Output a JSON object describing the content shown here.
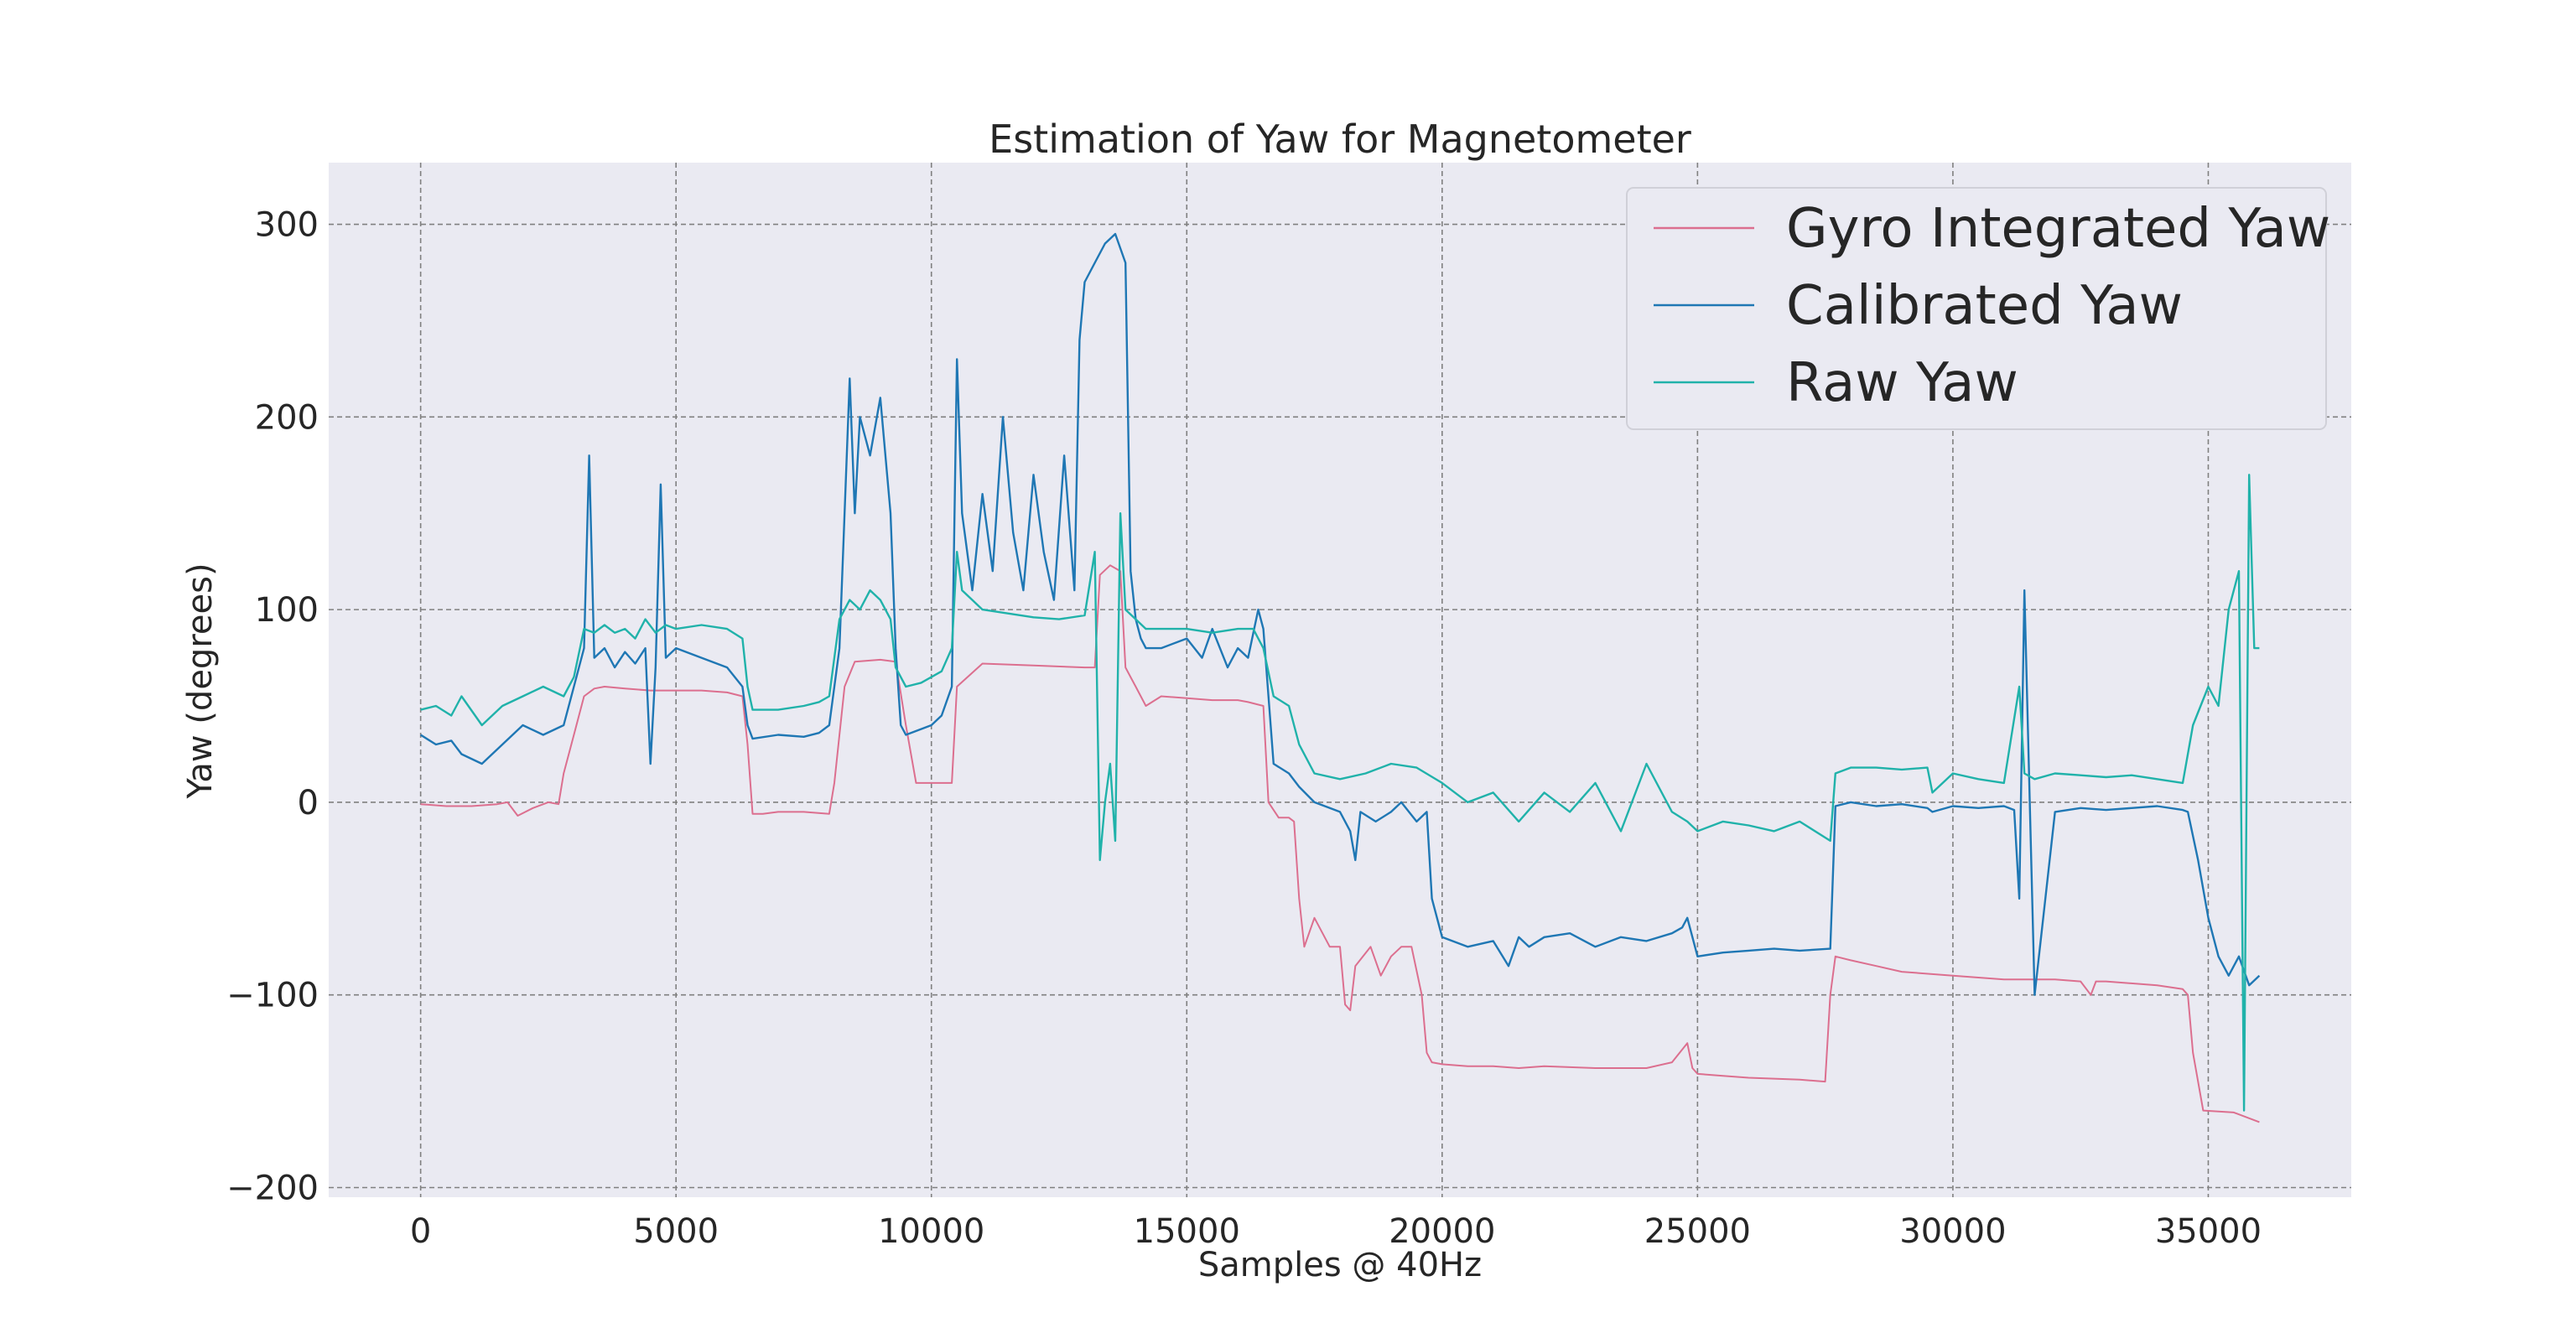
{
  "chart_data": {
    "type": "line",
    "title": "Estimation of Yaw for Magnetometer",
    "xlabel": "Samples @ 40Hz",
    "ylabel": "Yaw (degrees)",
    "xlim": [
      -1800,
      37800
    ],
    "ylim": [
      -205,
      332
    ],
    "xticks": [
      0,
      5000,
      10000,
      15000,
      20000,
      25000,
      30000,
      35000
    ],
    "xtick_labels": [
      "0",
      "5000",
      "10000",
      "15000",
      "20000",
      "25000",
      "30000",
      "35000"
    ],
    "yticks": [
      -200,
      -100,
      0,
      100,
      200,
      300
    ],
    "ytick_labels": [
      "−200",
      "−100",
      "0",
      "100",
      "200",
      "300"
    ],
    "grid": true,
    "legend_position": "top-right",
    "colors": {
      "plot_background": "#eaeaf2",
      "grid": "#808080"
    },
    "series": [
      {
        "name": "Gyro Integrated Yaw",
        "color": "#dc6f8f",
        "x": [
          0,
          500,
          1000,
          1500,
          1700,
          1900,
          2200,
          2500,
          2700,
          2800,
          3000,
          3200,
          3400,
          3600,
          4000,
          4500,
          5000,
          5500,
          6000,
          6300,
          6400,
          6500,
          6700,
          7000,
          7500,
          8000,
          8100,
          8300,
          8500,
          9000,
          9300,
          9500,
          9700,
          10000,
          10200,
          10400,
          10500,
          11000,
          12000,
          13000,
          13200,
          13300,
          13500,
          13700,
          13800,
          13900,
          14000,
          14200,
          14500,
          15000,
          15500,
          16000,
          16200,
          16500,
          16600,
          16800,
          17000,
          17100,
          17200,
          17300,
          17500,
          17800,
          18000,
          18100,
          18200,
          18300,
          18600,
          18800,
          19000,
          19200,
          19400,
          19600,
          19700,
          19800,
          20000,
          20500,
          21000,
          21500,
          22000,
          23000,
          24000,
          24500,
          24800,
          24900,
          25000,
          25500,
          26000,
          27000,
          27500,
          27600,
          27700,
          28000,
          28500,
          29000,
          30000,
          31000,
          32000,
          32500,
          32700,
          32800,
          33000,
          34000,
          34500,
          34600,
          34700,
          34900,
          35500,
          36000
        ],
        "values": [
          -1,
          -2,
          -2,
          -1,
          0,
          -7,
          -3,
          0,
          -1,
          15,
          35,
          55,
          59,
          60,
          59,
          58,
          58,
          58,
          57,
          55,
          30,
          -6,
          -6,
          -5,
          -5,
          -6,
          10,
          60,
          73,
          74,
          73,
          40,
          10,
          10,
          10,
          10,
          60,
          72,
          71,
          70,
          70,
          118,
          123,
          120,
          70,
          65,
          60,
          50,
          55,
          54,
          53,
          53,
          52,
          50,
          0,
          -8,
          -8,
          -10,
          -50,
          -75,
          -60,
          -75,
          -75,
          -105,
          -108,
          -85,
          -75,
          -90,
          -80,
          -75,
          -75,
          -100,
          -130,
          -135,
          -136,
          -137,
          -137,
          -138,
          -137,
          -138,
          -138,
          -135,
          -125,
          -138,
          -141,
          -142,
          -143,
          -144,
          -145,
          -100,
          -80,
          -82,
          -85,
          -88,
          -90,
          -92,
          -92,
          -93,
          -100,
          -93,
          -93,
          -95,
          -97,
          -100,
          -130,
          -160,
          -161,
          -166
        ]
      },
      {
        "name": "Calibrated Yaw",
        "color": "#1f77b4",
        "x": [
          0,
          300,
          600,
          800,
          1200,
          1600,
          2000,
          2400,
          2800,
          3000,
          3200,
          3300,
          3400,
          3600,
          3800,
          4000,
          4200,
          4400,
          4500,
          4600,
          4700,
          4800,
          5000,
          5500,
          6000,
          6300,
          6400,
          6500,
          7000,
          7500,
          7800,
          8000,
          8200,
          8400,
          8500,
          8600,
          8800,
          9000,
          9200,
          9300,
          9400,
          9500,
          9800,
          10000,
          10200,
          10400,
          10500,
          10600,
          10800,
          11000,
          11200,
          11400,
          11600,
          11800,
          12000,
          12200,
          12400,
          12600,
          12800,
          12900,
          13000,
          13200,
          13400,
          13600,
          13800,
          13900,
          14000,
          14100,
          14200,
          14500,
          15000,
          15300,
          15500,
          15800,
          16000,
          16200,
          16400,
          16500,
          16700,
          17000,
          17200,
          17500,
          17800,
          18000,
          18200,
          18300,
          18400,
          18700,
          19000,
          19200,
          19500,
          19700,
          19800,
          20000,
          20500,
          21000,
          21300,
          21500,
          21700,
          22000,
          22500,
          23000,
          23500,
          24000,
          24500,
          24700,
          24800,
          25000,
          25500,
          26000,
          26500,
          27000,
          27600,
          27700,
          28000,
          28500,
          29000,
          29500,
          29600,
          30000,
          30500,
          31000,
          31200,
          31300,
          31400,
          31600,
          32000,
          32500,
          33000,
          33500,
          34000,
          34500,
          34600,
          34800,
          35000,
          35200,
          35400,
          35600,
          35800,
          36000
        ],
        "values": [
          35,
          30,
          32,
          25,
          20,
          30,
          40,
          35,
          40,
          60,
          80,
          180,
          75,
          80,
          70,
          78,
          72,
          80,
          20,
          70,
          165,
          75,
          80,
          75,
          70,
          60,
          40,
          33,
          35,
          34,
          36,
          40,
          80,
          220,
          150,
          200,
          180,
          210,
          150,
          80,
          40,
          35,
          38,
          40,
          45,
          60,
          230,
          150,
          110,
          160,
          120,
          200,
          140,
          110,
          170,
          130,
          105,
          180,
          110,
          240,
          270,
          280,
          290,
          295,
          280,
          120,
          95,
          85,
          80,
          80,
          85,
          75,
          90,
          70,
          80,
          75,
          100,
          90,
          20,
          15,
          8,
          0,
          -3,
          -5,
          -15,
          -30,
          -5,
          -10,
          -5,
          0,
          -10,
          -5,
          -50,
          -70,
          -75,
          -72,
          -85,
          -70,
          -75,
          -70,
          -68,
          -75,
          -70,
          -72,
          -68,
          -65,
          -60,
          -80,
          -78,
          -77,
          -76,
          -77,
          -76,
          -2,
          0,
          -2,
          -1,
          -3,
          -5,
          -2,
          -3,
          -2,
          -4,
          -50,
          110,
          -100,
          -5,
          -3,
          -4,
          -3,
          -2,
          -4,
          -5,
          -30,
          -60,
          -80,
          -90,
          -80,
          -95,
          -90
        ]
      },
      {
        "name": "Raw Yaw",
        "color": "#20b2aa",
        "x": [
          0,
          300,
          600,
          800,
          1200,
          1600,
          2000,
          2400,
          2800,
          3000,
          3200,
          3400,
          3600,
          3800,
          4000,
          4200,
          4400,
          4600,
          4800,
          5000,
          5500,
          6000,
          6300,
          6400,
          6500,
          7000,
          7500,
          7800,
          8000,
          8200,
          8400,
          8600,
          8800,
          9000,
          9200,
          9300,
          9500,
          9800,
          10000,
          10200,
          10400,
          10500,
          10600,
          10800,
          11000,
          11500,
          12000,
          12500,
          13000,
          13200,
          13300,
          13400,
          13500,
          13600,
          13700,
          13800,
          14000,
          14200,
          14500,
          15000,
          15500,
          16000,
          16300,
          16500,
          16700,
          17000,
          17200,
          17500,
          18000,
          18500,
          19000,
          19500,
          20000,
          20500,
          21000,
          21500,
          22000,
          22500,
          23000,
          23500,
          24000,
          24500,
          24800,
          25000,
          25500,
          26000,
          26500,
          27000,
          27600,
          27700,
          28000,
          28500,
          29000,
          29500,
          29600,
          30000,
          30500,
          31000,
          31300,
          31400,
          31600,
          32000,
          32500,
          33000,
          33500,
          34000,
          34500,
          34700,
          35000,
          35200,
          35400,
          35600,
          35700,
          35800,
          35900,
          36000
        ],
        "values": [
          48,
          50,
          45,
          55,
          40,
          50,
          55,
          60,
          55,
          65,
          90,
          88,
          92,
          88,
          90,
          85,
          95,
          88,
          92,
          90,
          92,
          90,
          85,
          60,
          48,
          48,
          50,
          52,
          55,
          95,
          105,
          100,
          110,
          105,
          95,
          70,
          60,
          62,
          65,
          68,
          80,
          130,
          110,
          105,
          100,
          98,
          96,
          95,
          97,
          130,
          -30,
          0,
          20,
          -20,
          150,
          100,
          95,
          90,
          90,
          90,
          88,
          90,
          90,
          80,
          55,
          50,
          30,
          15,
          12,
          15,
          20,
          18,
          10,
          0,
          5,
          -10,
          5,
          -5,
          10,
          -15,
          20,
          -5,
          -10,
          -15,
          -10,
          -12,
          -15,
          -10,
          -20,
          15,
          18,
          18,
          17,
          18,
          5,
          15,
          12,
          10,
          60,
          15,
          12,
          15,
          14,
          13,
          14,
          12,
          10,
          40,
          60,
          50,
          100,
          120,
          -160,
          170,
          80,
          80
        ]
      }
    ]
  }
}
